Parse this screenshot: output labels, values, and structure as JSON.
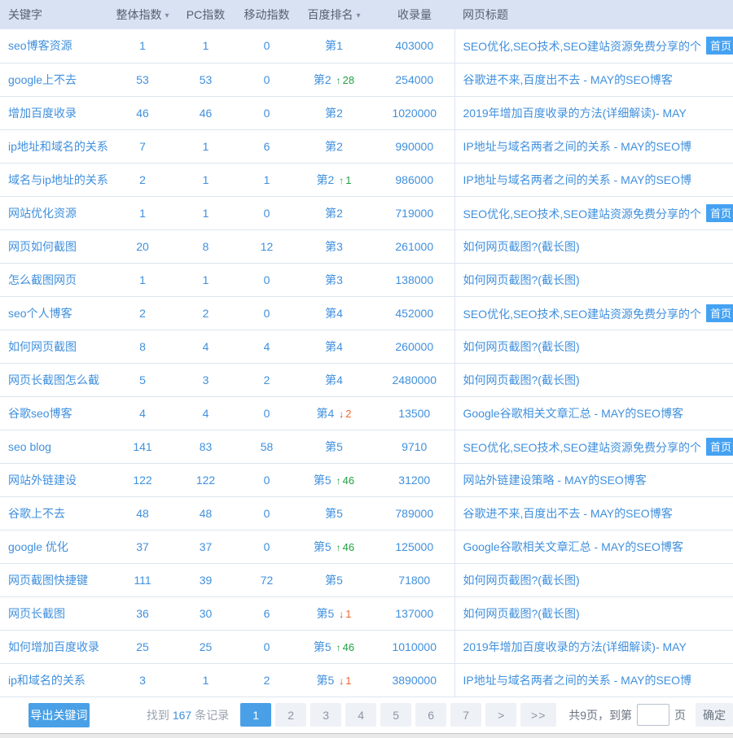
{
  "table": {
    "columns": [
      {
        "label": "关键字",
        "sortable": false
      },
      {
        "label": "整体指数",
        "sortable": true
      },
      {
        "label": "PC指数",
        "sortable": false
      },
      {
        "label": "移动指数",
        "sortable": false
      },
      {
        "label": "百度排名",
        "sortable": true
      },
      {
        "label": "收录量",
        "sortable": false
      },
      {
        "label": "网页标题",
        "sortable": false
      }
    ],
    "rows": [
      {
        "keyword": "seo博客资源",
        "overall": "1",
        "pc": "1",
        "mobile": "0",
        "rank": "第1",
        "change": "",
        "dir": "",
        "volume": "403000",
        "title": "SEO优化,SEO技术,SEO建站资源免费分享的个",
        "badge": "首页"
      },
      {
        "keyword": "google上不去",
        "overall": "53",
        "pc": "53",
        "mobile": "0",
        "rank": "第2",
        "change": "28",
        "dir": "up",
        "volume": "254000",
        "title": "谷歌进不来,百度出不去 - MAY的SEO博客",
        "badge": ""
      },
      {
        "keyword": "增加百度收录",
        "overall": "46",
        "pc": "46",
        "mobile": "0",
        "rank": "第2",
        "change": "",
        "dir": "",
        "volume": "1020000",
        "title": "2019年增加百度收录的方法(详细解读)- MAY",
        "badge": ""
      },
      {
        "keyword": "ip地址和域名的关系",
        "overall": "7",
        "pc": "1",
        "mobile": "6",
        "rank": "第2",
        "change": "",
        "dir": "",
        "volume": "990000",
        "title": "IP地址与域名两者之间的关系 - MAY的SEO博",
        "badge": ""
      },
      {
        "keyword": "域名与ip地址的关系",
        "overall": "2",
        "pc": "1",
        "mobile": "1",
        "rank": "第2",
        "change": "1",
        "dir": "up",
        "volume": "986000",
        "title": "IP地址与域名两者之间的关系 - MAY的SEO博",
        "badge": ""
      },
      {
        "keyword": "网站优化资源",
        "overall": "1",
        "pc": "1",
        "mobile": "0",
        "rank": "第2",
        "change": "",
        "dir": "",
        "volume": "719000",
        "title": "SEO优化,SEO技术,SEO建站资源免费分享的个",
        "badge": "首页"
      },
      {
        "keyword": "网页如何截图",
        "overall": "20",
        "pc": "8",
        "mobile": "12",
        "rank": "第3",
        "change": "",
        "dir": "",
        "volume": "261000",
        "title": "如何网页截图?(截长图)",
        "badge": ""
      },
      {
        "keyword": "怎么截图网页",
        "overall": "1",
        "pc": "1",
        "mobile": "0",
        "rank": "第3",
        "change": "",
        "dir": "",
        "volume": "138000",
        "title": "如何网页截图?(截长图)",
        "badge": ""
      },
      {
        "keyword": "seo个人博客",
        "overall": "2",
        "pc": "2",
        "mobile": "0",
        "rank": "第4",
        "change": "",
        "dir": "",
        "volume": "452000",
        "title": "SEO优化,SEO技术,SEO建站资源免费分享的个",
        "badge": "首页"
      },
      {
        "keyword": "如何网页截图",
        "overall": "8",
        "pc": "4",
        "mobile": "4",
        "rank": "第4",
        "change": "",
        "dir": "",
        "volume": "260000",
        "title": "如何网页截图?(截长图)",
        "badge": ""
      },
      {
        "keyword": "网页长截图怎么截",
        "overall": "5",
        "pc": "3",
        "mobile": "2",
        "rank": "第4",
        "change": "",
        "dir": "",
        "volume": "2480000",
        "title": "如何网页截图?(截长图)",
        "badge": ""
      },
      {
        "keyword": "谷歌seo博客",
        "overall": "4",
        "pc": "4",
        "mobile": "0",
        "rank": "第4",
        "change": "2",
        "dir": "down",
        "volume": "13500",
        "title": "Google谷歌相关文章汇总 - MAY的SEO博客",
        "badge": ""
      },
      {
        "keyword": "seo blog",
        "overall": "141",
        "pc": "83",
        "mobile": "58",
        "rank": "第5",
        "change": "",
        "dir": "",
        "volume": "9710",
        "title": "SEO优化,SEO技术,SEO建站资源免费分享的个",
        "badge": "首页"
      },
      {
        "keyword": "网站外链建设",
        "overall": "122",
        "pc": "122",
        "mobile": "0",
        "rank": "第5",
        "change": "46",
        "dir": "up",
        "volume": "31200",
        "title": "网站外链建设策略 - MAY的SEO博客",
        "badge": ""
      },
      {
        "keyword": "谷歌上不去",
        "overall": "48",
        "pc": "48",
        "mobile": "0",
        "rank": "第5",
        "change": "",
        "dir": "",
        "volume": "789000",
        "title": "谷歌进不来,百度出不去 - MAY的SEO博客",
        "badge": ""
      },
      {
        "keyword": "google 优化",
        "overall": "37",
        "pc": "37",
        "mobile": "0",
        "rank": "第5",
        "change": "46",
        "dir": "up",
        "volume": "125000",
        "title": "Google谷歌相关文章汇总 - MAY的SEO博客",
        "badge": ""
      },
      {
        "keyword": "网页截图快捷键",
        "overall": "111",
        "pc": "39",
        "mobile": "72",
        "rank": "第5",
        "change": "",
        "dir": "",
        "volume": "71800",
        "title": "如何网页截图?(截长图)",
        "badge": ""
      },
      {
        "keyword": "网页长截图",
        "overall": "36",
        "pc": "30",
        "mobile": "6",
        "rank": "第5",
        "change": "1",
        "dir": "down",
        "volume": "137000",
        "title": "如何网页截图?(截长图)",
        "badge": ""
      },
      {
        "keyword": "如何增加百度收录",
        "overall": "25",
        "pc": "25",
        "mobile": "0",
        "rank": "第5",
        "change": "46",
        "dir": "up",
        "volume": "1010000",
        "title": "2019年增加百度收录的方法(详细解读)- MAY",
        "badge": ""
      },
      {
        "keyword": "ip和域名的关系",
        "overall": "3",
        "pc": "1",
        "mobile": "2",
        "rank": "第5",
        "change": "1",
        "dir": "down",
        "volume": "3890000",
        "title": "IP地址与域名两者之间的关系 - MAY的SEO博",
        "badge": ""
      }
    ]
  },
  "icons": {
    "sort_down": "▾",
    "arrow_up": "↑",
    "arrow_down": "↓"
  },
  "footer": {
    "export_label": "导出关键词",
    "found_prefix": "找到",
    "record_count": "167",
    "found_suffix": "条记录",
    "pages": [
      "1",
      "2",
      "3",
      "4",
      "5",
      "6",
      "7"
    ],
    "active_page": "1",
    "next_label": ">",
    "last_label": ">>",
    "total_text": "共9页，到第",
    "goto_value": "",
    "page_suffix": "页",
    "confirm_label": "确定"
  },
  "colors": {
    "header_bg": "#d9e2f3",
    "link_blue": "#4090dd",
    "badge_bg": "#45a2f2",
    "up_green": "#21a142",
    "down_red": "#ef662f",
    "accent_button": "#4aa0e6",
    "row_border": "#dde5f1"
  }
}
